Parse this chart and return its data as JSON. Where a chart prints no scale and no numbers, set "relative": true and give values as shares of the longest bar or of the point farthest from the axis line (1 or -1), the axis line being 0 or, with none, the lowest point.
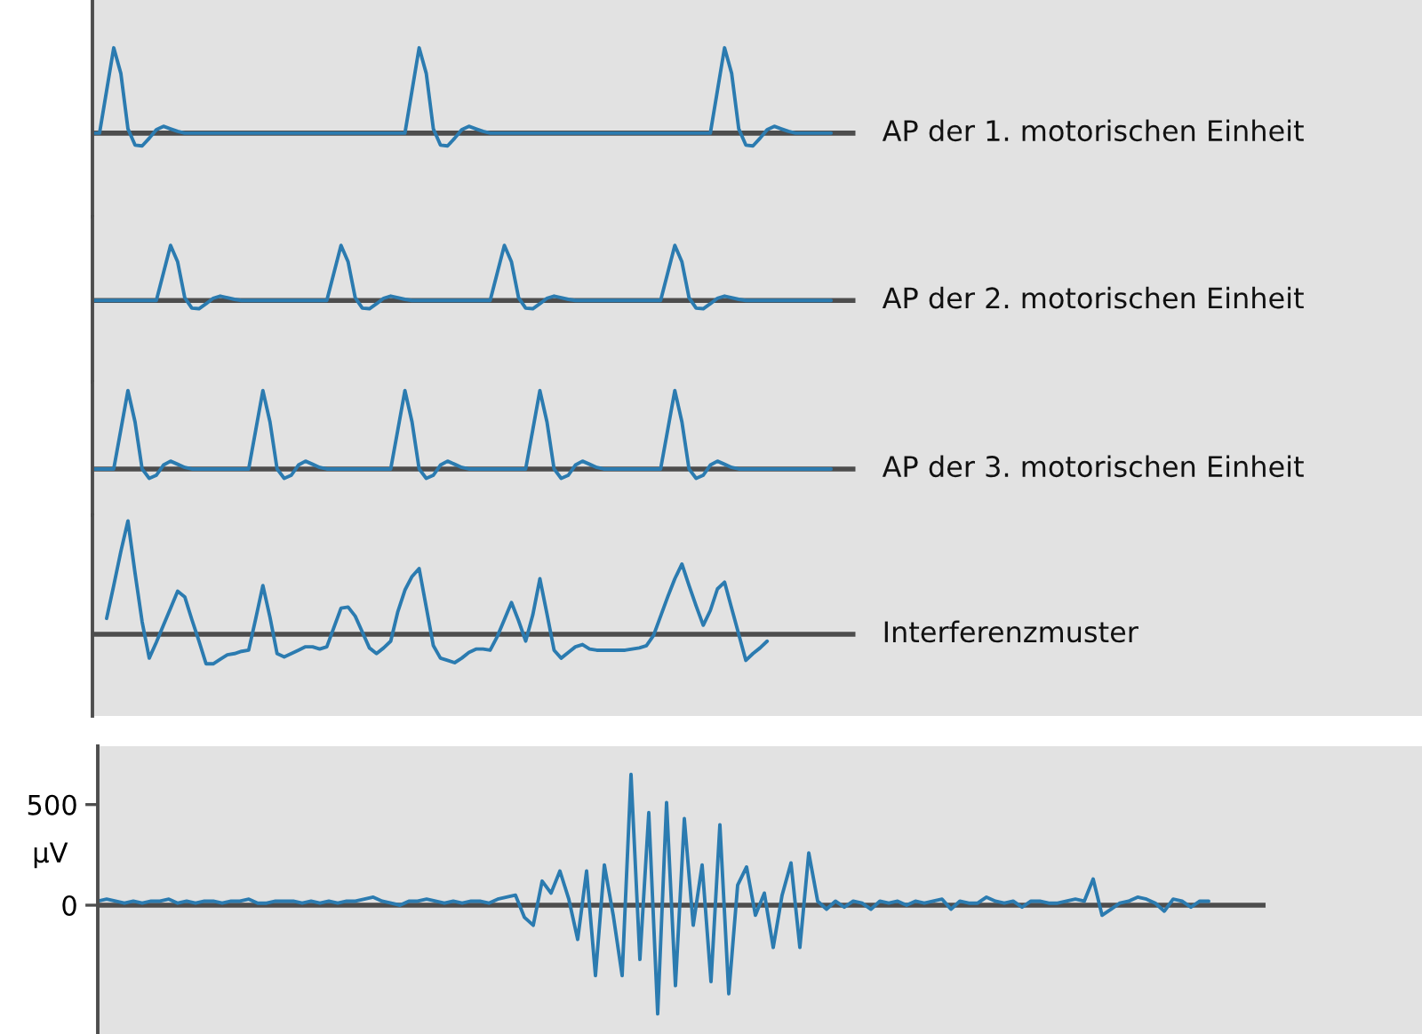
{
  "chart_data": [
    {
      "type": "line",
      "relative": true,
      "categories": [
        null,
        null,
        null,
        null,
        null,
        null,
        null,
        null,
        null,
        null,
        null,
        null,
        null,
        null,
        null,
        null,
        null,
        null,
        null,
        null,
        null,
        null,
        null,
        null,
        null,
        null,
        null,
        null,
        null,
        null,
        null,
        null,
        null,
        null,
        null,
        null,
        null,
        null,
        null,
        null,
        null,
        null,
        null,
        null,
        null,
        null,
        null,
        null,
        null,
        null,
        null,
        null,
        null,
        null,
        null,
        null,
        null,
        null,
        null,
        null,
        null,
        null,
        null,
        null,
        null,
        null,
        null,
        null,
        null,
        null,
        null,
        null,
        null,
        null,
        null,
        null,
        null,
        null,
        null,
        null,
        null,
        null,
        null,
        null,
        null,
        null,
        null,
        null,
        null,
        null,
        null,
        null,
        null,
        null,
        null,
        null,
        null,
        null,
        null,
        null,
        null,
        null,
        null,
        null,
        null
      ],
      "series": [
        {
          "name": "AP der 1. motorischen Einheit",
          "color": "#2b7bb0",
          "values": [
            0,
            0,
            0.5,
            1.0,
            0.7,
            0.05,
            -0.14,
            -0.15,
            -0.06,
            0.04,
            0.08,
            0.05,
            0.02,
            0,
            0,
            0,
            0,
            0,
            0,
            0,
            0,
            0,
            0,
            0,
            0,
            0,
            0,
            0,
            0,
            0,
            0,
            0,
            0,
            0,
            0,
            0,
            0,
            0,
            0,
            0,
            0,
            0,
            0,
            0,
            0,
            0.5,
            1.0,
            0.7,
            0.05,
            -0.14,
            -0.15,
            -0.06,
            0.04,
            0.08,
            0.05,
            0.02,
            0,
            0,
            0,
            0,
            0,
            0,
            0,
            0,
            0,
            0,
            0,
            0,
            0,
            0,
            0,
            0,
            0,
            0,
            0,
            0,
            0,
            0,
            0,
            0,
            0,
            0,
            0,
            0,
            0,
            0,
            0,
            0,
            0.5,
            1.0,
            0.7,
            0.05,
            -0.14,
            -0.15,
            -0.06,
            0.04,
            0.08,
            0.05,
            0.02,
            0,
            0,
            0,
            0,
            0,
            0
          ]
        }
      ]
    },
    {
      "type": "line",
      "relative": true,
      "categories": [
        null,
        null,
        null,
        null,
        null,
        null,
        null,
        null,
        null,
        null,
        null,
        null,
        null,
        null,
        null,
        null,
        null,
        null,
        null,
        null,
        null,
        null,
        null,
        null,
        null,
        null,
        null,
        null,
        null,
        null,
        null,
        null,
        null,
        null,
        null,
        null,
        null,
        null,
        null,
        null,
        null,
        null,
        null,
        null,
        null,
        null,
        null,
        null,
        null,
        null,
        null,
        null,
        null,
        null,
        null,
        null,
        null,
        null,
        null,
        null,
        null,
        null,
        null,
        null,
        null,
        null,
        null,
        null,
        null,
        null,
        null,
        null,
        null,
        null,
        null,
        null,
        null,
        null,
        null,
        null,
        null,
        null,
        null,
        null,
        null,
        null,
        null,
        null,
        null,
        null,
        null,
        null,
        null,
        null,
        null,
        null,
        null,
        null,
        null,
        null,
        null,
        null,
        null,
        null,
        null
      ],
      "series": [
        {
          "name": "AP der 2. motorischen Einheit",
          "color": "#2b7bb0",
          "values": [
            0,
            0,
            0,
            0,
            0,
            0,
            0,
            0,
            0,
            0,
            0.5,
            1.0,
            0.7,
            0.05,
            -0.14,
            -0.15,
            -0.06,
            0.04,
            0.08,
            0.05,
            0.02,
            0,
            0,
            0,
            0,
            0,
            0,
            0,
            0,
            0,
            0,
            0,
            0,
            0,
            0.5,
            1.0,
            0.7,
            0.05,
            -0.14,
            -0.15,
            -0.06,
            0.04,
            0.08,
            0.05,
            0.02,
            0,
            0,
            0,
            0,
            0,
            0,
            0,
            0,
            0,
            0,
            0,
            0,
            0.5,
            1.0,
            0.7,
            0.05,
            -0.14,
            -0.15,
            -0.06,
            0.04,
            0.08,
            0.05,
            0.02,
            0,
            0,
            0,
            0,
            0,
            0,
            0,
            0,
            0,
            0,
            0,
            0,
            0,
            0.5,
            1.0,
            0.7,
            0.05,
            -0.14,
            -0.15,
            -0.06,
            0.04,
            0.08,
            0.05,
            0.02,
            0,
            0,
            0,
            0,
            0,
            0,
            0,
            0,
            0,
            0,
            0,
            0,
            0
          ]
        }
      ]
    },
    {
      "type": "line",
      "relative": true,
      "categories": [
        null,
        null,
        null,
        null,
        null,
        null,
        null,
        null,
        null,
        null,
        null,
        null,
        null,
        null,
        null,
        null,
        null,
        null,
        null,
        null,
        null,
        null,
        null,
        null,
        null,
        null,
        null,
        null,
        null,
        null,
        null,
        null,
        null,
        null,
        null,
        null,
        null,
        null,
        null,
        null,
        null,
        null,
        null,
        null,
        null,
        null,
        null,
        null,
        null,
        null,
        null,
        null,
        null,
        null,
        null,
        null,
        null,
        null,
        null,
        null,
        null,
        null,
        null,
        null,
        null,
        null,
        null,
        null,
        null,
        null,
        null,
        null,
        null,
        null,
        null,
        null,
        null,
        null,
        null,
        null,
        null,
        null,
        null,
        null,
        null,
        null,
        null,
        null,
        null,
        null,
        null,
        null,
        null,
        null,
        null,
        null,
        null,
        null,
        null,
        null,
        null,
        null,
        null,
        null,
        null
      ],
      "series": [
        {
          "name": "AP der 3. motorischen Einheit",
          "color": "#2b7bb0",
          "values": [
            0,
            0,
            0,
            0,
            0.5,
            1.0,
            0.6,
            0,
            -0.12,
            -0.08,
            0.05,
            0.1,
            0.06,
            0.02,
            0,
            0,
            0,
            0,
            0,
            0,
            0,
            0,
            0,
            0.5,
            1.0,
            0.6,
            0,
            -0.12,
            -0.08,
            0.05,
            0.1,
            0.06,
            0.02,
            0,
            0,
            0,
            0,
            0,
            0,
            0,
            0,
            0,
            0,
            0.5,
            1.0,
            0.6,
            0,
            -0.12,
            -0.08,
            0.05,
            0.1,
            0.06,
            0.02,
            0,
            0,
            0,
            0,
            0,
            0,
            0,
            0,
            0,
            0.5,
            1.0,
            0.6,
            0,
            -0.12,
            -0.08,
            0.05,
            0.1,
            0.06,
            0.02,
            0,
            0,
            0,
            0,
            0,
            0,
            0,
            0,
            0,
            0.5,
            1.0,
            0.6,
            0,
            -0.12,
            -0.08,
            0.05,
            0.1,
            0.06,
            0.02,
            0,
            0,
            0,
            0,
            0,
            0,
            0,
            0,
            0,
            0,
            0,
            0,
            0,
            0
          ]
        }
      ]
    },
    {
      "type": "line",
      "relative": true,
      "categories": [
        null,
        null,
        null,
        null,
        null,
        null,
        null,
        null,
        null,
        null,
        null,
        null,
        null,
        null,
        null,
        null,
        null,
        null,
        null,
        null,
        null,
        null,
        null,
        null,
        null,
        null,
        null,
        null,
        null,
        null,
        null,
        null,
        null,
        null,
        null,
        null,
        null,
        null,
        null,
        null,
        null,
        null,
        null,
        null,
        null,
        null,
        null,
        null,
        null,
        null,
        null,
        null,
        null,
        null,
        null,
        null,
        null,
        null,
        null,
        null,
        null,
        null,
        null,
        null,
        null,
        null,
        null,
        null,
        null,
        null,
        null,
        null,
        null,
        null,
        null,
        null,
        null,
        null,
        null,
        null,
        null,
        null,
        null,
        null,
        null,
        null,
        null,
        null,
        null,
        null,
        null,
        null,
        null,
        null,
        null,
        null,
        null,
        null,
        null,
        null,
        null,
        null,
        null,
        null,
        null
      ],
      "series": [
        {
          "name": "Interferenzmuster",
          "color": "#2b7bb0",
          "values": [
            null,
            null,
            0.14,
            0.43,
            0.73,
            1.0,
            0.54,
            0.11,
            -0.21,
            -0.07,
            0.08,
            0.23,
            0.38,
            0.33,
            0.13,
            -0.06,
            -0.26,
            -0.26,
            -0.22,
            -0.18,
            -0.17,
            -0.15,
            -0.14,
            0.14,
            0.43,
            0.15,
            -0.17,
            -0.2,
            -0.17,
            -0.14,
            -0.11,
            -0.11,
            -0.13,
            -0.11,
            0.06,
            0.23,
            0.24,
            0.16,
            0.02,
            -0.12,
            -0.17,
            -0.12,
            -0.06,
            0.2,
            0.39,
            0.51,
            0.58,
            0.24,
            -0.1,
            -0.21,
            -0.23,
            -0.25,
            -0.21,
            -0.16,
            -0.13,
            -0.13,
            -0.14,
            -0.02,
            0.13,
            0.28,
            0.12,
            -0.06,
            0.17,
            0.49,
            0.18,
            -0.14,
            -0.21,
            -0.16,
            -0.11,
            -0.09,
            -0.13,
            -0.14,
            -0.14,
            -0.14,
            -0.14,
            -0.14,
            -0.13,
            -0.12,
            -0.1,
            -0.01,
            0.16,
            0.33,
            0.49,
            0.62,
            0.43,
            0.25,
            0.08,
            0.21,
            0.4,
            0.46,
            0.23,
            0.0,
            -0.23,
            -0.17,
            -0.12,
            -0.06,
            null,
            null,
            null,
            null,
            null,
            null,
            null,
            null,
            null
          ]
        }
      ]
    },
    {
      "type": "line",
      "ylabel": "µV",
      "ylim": [
        -640,
        790
      ],
      "yticks": [
        0,
        500
      ],
      "tick_labels": "y",
      "categories": [
        null,
        null,
        null,
        null,
        null,
        null,
        null,
        null,
        null,
        null,
        null,
        null,
        null,
        null,
        null,
        null,
        null,
        null,
        null,
        null,
        null,
        null,
        null,
        null,
        null,
        null,
        null,
        null,
        null,
        null,
        null,
        null,
        null,
        null,
        null,
        null,
        null,
        null,
        null,
        null,
        null,
        null,
        null,
        null,
        null,
        null,
        null,
        null,
        null,
        null,
        null,
        null,
        null,
        null,
        null,
        null,
        null,
        null,
        null,
        null,
        null,
        null,
        null,
        null,
        null,
        null,
        null,
        null,
        null,
        null,
        null,
        null,
        null,
        null,
        null,
        null,
        null,
        null,
        null,
        null,
        null,
        null,
        null,
        null,
        null,
        null,
        null,
        null,
        null,
        null,
        null,
        null,
        null,
        null,
        null,
        null,
        null,
        null,
        null,
        null,
        null,
        null,
        null,
        null,
        null,
        null,
        null,
        null,
        null,
        null,
        null,
        null,
        null,
        null,
        null,
        null,
        null,
        null,
        null,
        null,
        null,
        null,
        null,
        null,
        null,
        null
      ],
      "series": [
        {
          "color": "#2b7bb0",
          "values": [
            20,
            30,
            20,
            10,
            20,
            10,
            20,
            20,
            30,
            10,
            20,
            10,
            20,
            20,
            10,
            20,
            20,
            30,
            10,
            10,
            20,
            20,
            20,
            10,
            20,
            10,
            20,
            10,
            20,
            20,
            30,
            40,
            20,
            10,
            0,
            20,
            20,
            30,
            20,
            10,
            20,
            10,
            20,
            20,
            10,
            30,
            40,
            50,
            -60,
            -100,
            120,
            60,
            170,
            30,
            -170,
            170,
            -350,
            200,
            -50,
            -350,
            650,
            -270,
            460,
            -540,
            510,
            -400,
            430,
            -100,
            200,
            -380,
            400,
            -440,
            100,
            190,
            -50,
            60,
            -210,
            50,
            210,
            -210,
            260,
            20,
            -20,
            20,
            -10,
            20,
            10,
            -20,
            20,
            10,
            20,
            0,
            20,
            10,
            20,
            30,
            -20,
            20,
            10,
            10,
            40,
            20,
            10,
            20,
            -10,
            20,
            20,
            10,
            10,
            20,
            30,
            20,
            130,
            -50,
            -20,
            10,
            20,
            40,
            30,
            10,
            -30,
            30,
            20,
            -10,
            20,
            20
          ]
        }
      ]
    }
  ]
}
